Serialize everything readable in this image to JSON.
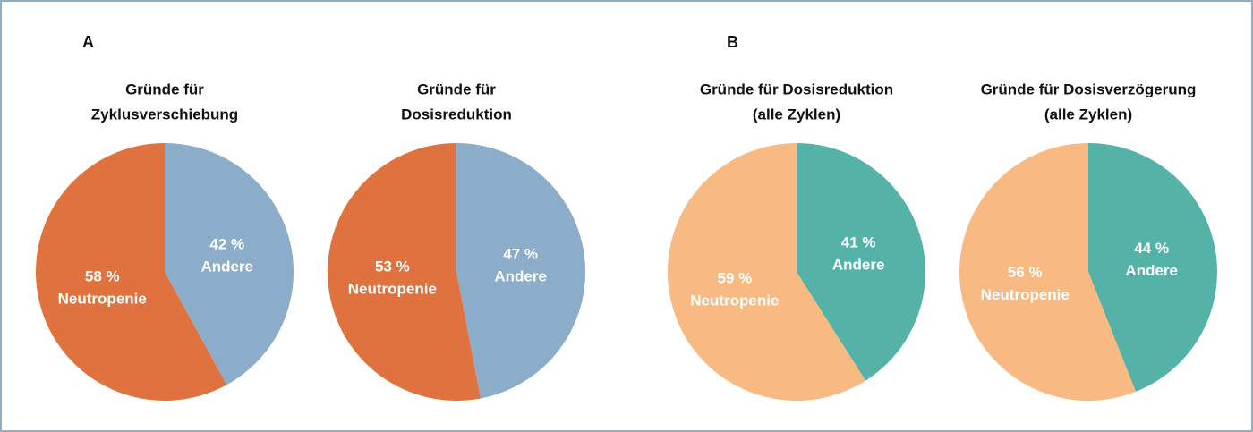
{
  "chart_data": [
    {
      "type": "pie",
      "panel": "A",
      "title": [
        "Gründe für",
        "Zyklusverschiebung"
      ],
      "categories": [
        "Andere",
        "Neutropenie"
      ],
      "values": [
        42,
        58
      ],
      "value_labels": [
        "42 %",
        "58 %"
      ],
      "colors": [
        "#8badc9",
        "#e0723f"
      ]
    },
    {
      "type": "pie",
      "title": [
        "Gründe für",
        "Dosisreduktion"
      ],
      "categories": [
        "Andere",
        "Neutropenie"
      ],
      "values": [
        47,
        53
      ],
      "value_labels": [
        "47 %",
        "53 %"
      ],
      "colors": [
        "#8badc9",
        "#e0723f"
      ]
    },
    {
      "type": "pie",
      "panel": "B",
      "title": [
        "Gründe für Dosisreduktion",
        "(alle Zyklen)"
      ],
      "categories": [
        "Andere",
        "Neutropenie"
      ],
      "values": [
        41,
        59
      ],
      "value_labels": [
        "41 %",
        "59 %"
      ],
      "colors": [
        "#55b2a7",
        "#f9b982"
      ]
    },
    {
      "type": "pie",
      "title": [
        "Gründe für Dosisverzögerung",
        "(alle Zyklen)"
      ],
      "categories": [
        "Andere",
        "Neutropenie"
      ],
      "values": [
        44,
        56
      ],
      "value_labels": [
        "44 %",
        "56 %"
      ],
      "colors": [
        "#55b2a7",
        "#f9b982"
      ]
    }
  ]
}
